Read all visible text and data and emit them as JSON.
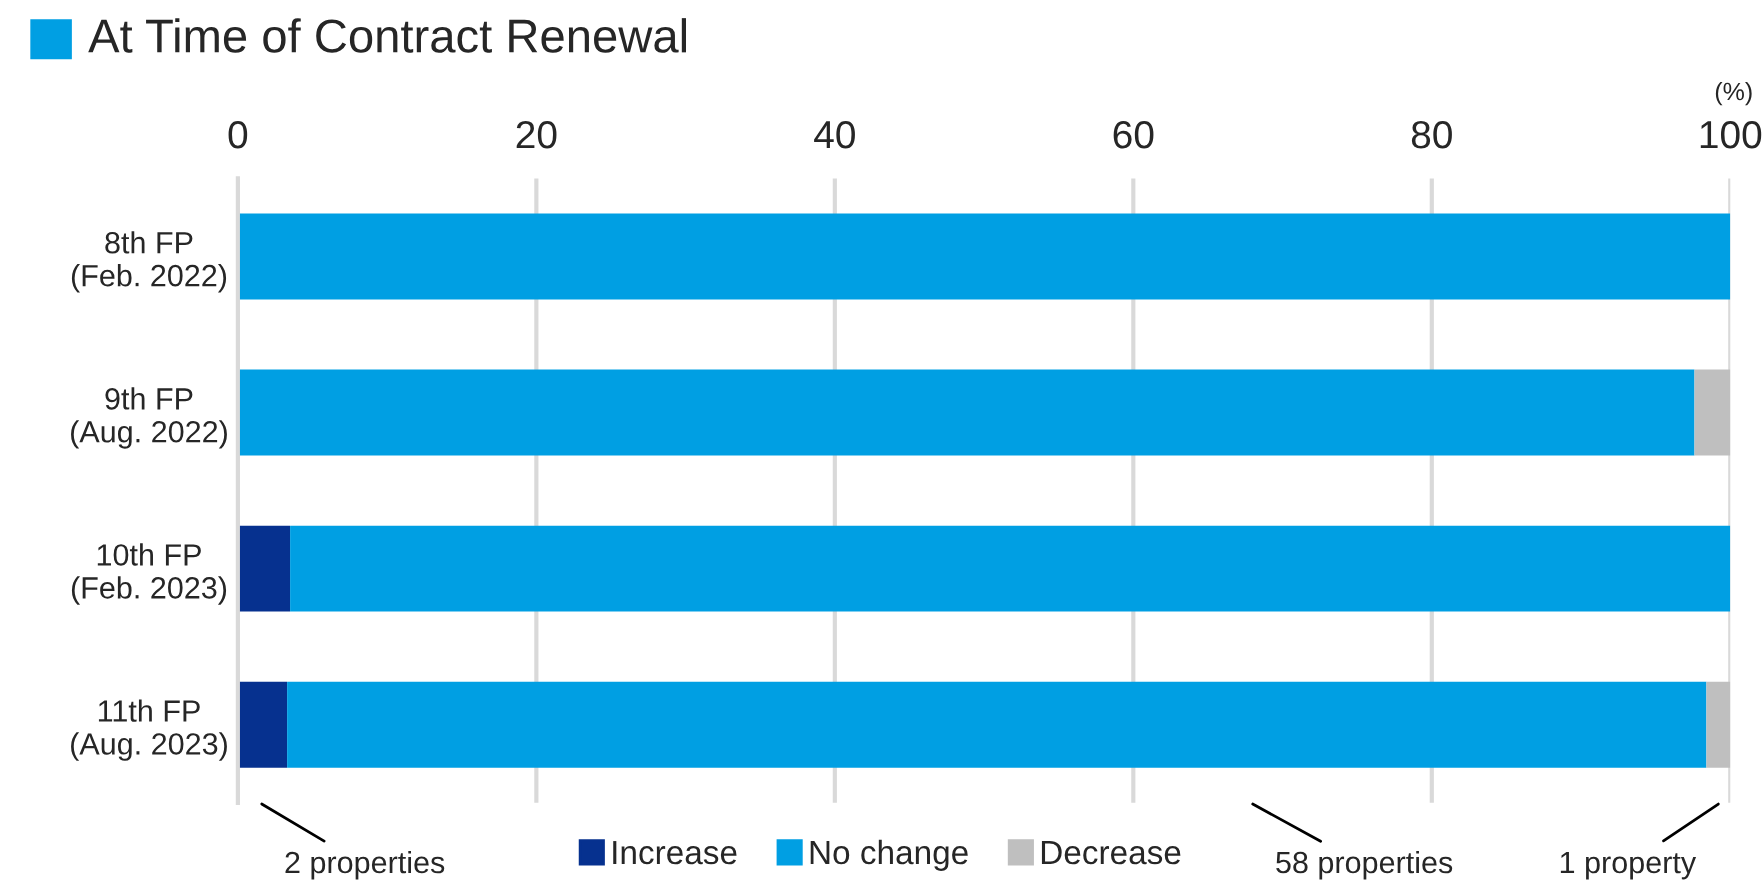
{
  "chart_data": {
    "type": "bar",
    "orientation": "horizontal",
    "stacked": true,
    "title": "At Time of Contract Renewal",
    "categories": [
      "8th FP\n(Feb. 2022)",
      "9th FP\n(Aug. 2022)",
      "10th FP\n(Feb. 2023)",
      "11th FP\n(Aug. 2023)"
    ],
    "series": [
      {
        "name": "Increase",
        "color": "#06318f",
        "values": [
          0,
          0,
          3.5,
          3.3
        ]
      },
      {
        "name": "No change",
        "color": "#009fe3",
        "values": [
          100,
          97.6,
          96.5,
          95.1
        ]
      },
      {
        "name": "Decrease",
        "color": "#bfbfbf",
        "values": [
          0,
          2.4,
          0,
          1.6
        ]
      }
    ],
    "xlim": [
      0,
      100
    ],
    "xticks": [
      0,
      20,
      40,
      60,
      80,
      100
    ],
    "grid": "x",
    "legend": "bottom",
    "annotations": [
      "(%)",
      "2 properties",
      "58 properties",
      "1 property"
    ]
  }
}
